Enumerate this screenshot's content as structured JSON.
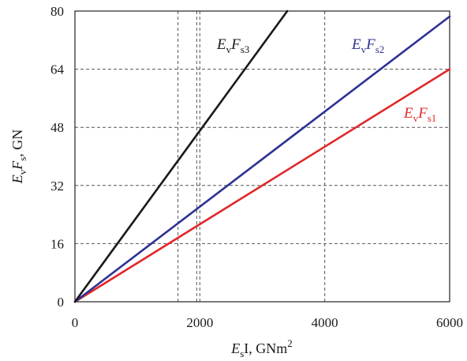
{
  "chart_data": {
    "type": "line",
    "x": [
      0,
      6000
    ],
    "xlim": [
      0,
      6000
    ],
    "ylim": [
      0,
      80
    ],
    "x_ticks": [
      0,
      2000,
      4000,
      6000
    ],
    "y_ticks": [
      0,
      16,
      32,
      48,
      64,
      80
    ],
    "x_tick_labels": [
      "0",
      "2000",
      "4000",
      "6000"
    ],
    "y_tick_labels": [
      "0",
      "16",
      "32",
      "48",
      "64",
      "80"
    ],
    "extra_vertical_gridlines": [
      1650,
      1950
    ],
    "xlabel": {
      "main": "E",
      "sub": "s",
      "rest": "I, GNm",
      "sup": "2"
    },
    "ylabel": {
      "m1": "E",
      "s1": "v",
      "m2": "F",
      "s2": "s",
      "rest": ", GN"
    },
    "grid": true,
    "series": [
      {
        "name": {
          "main1": "E",
          "sub1": "v",
          "main2": "F",
          "sub2": "s1"
        },
        "color": "#e0282a",
        "points": [
          [
            0,
            0
          ],
          [
            6000,
            64
          ]
        ]
      },
      {
        "name": {
          "main1": "E",
          "sub1": "v",
          "main2": "F",
          "sub2": "s2"
        },
        "color": "#2e3192",
        "points": [
          [
            0,
            0
          ],
          [
            6000,
            78.5
          ]
        ]
      },
      {
        "name": {
          "main1": "E",
          "sub1": "v",
          "main2": "F",
          "sub2": "s3"
        },
        "color": "#1a1a1a",
        "points": [
          [
            0,
            0
          ],
          [
            3400,
            80
          ]
        ]
      }
    ]
  }
}
